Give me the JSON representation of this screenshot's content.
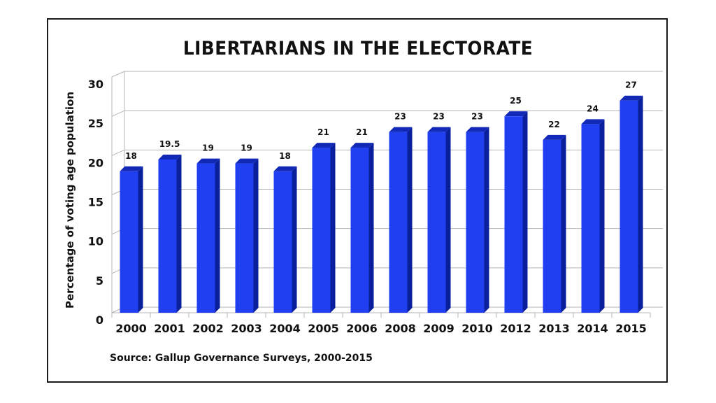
{
  "chart_data": {
    "type": "bar",
    "title": "LIBERTARIANS IN THE ELECTORATE",
    "ylabel": "Percentage of voting age population",
    "xlabel": "",
    "source": "Source: Gallup Governance Surveys, 2000-2015",
    "categories": [
      "2000",
      "2001",
      "2002",
      "2003",
      "2004",
      "2005",
      "2006",
      "2008",
      "2009",
      "2010",
      "2012",
      "2013",
      "2014",
      "2015"
    ],
    "values": [
      18,
      19.5,
      19,
      19,
      18,
      21,
      21,
      23,
      23,
      23,
      25,
      22,
      24,
      27
    ],
    "data_labels": [
      "18",
      "19.5",
      "19",
      "19",
      "18",
      "21",
      "21",
      "23",
      "23",
      "23",
      "25",
      "22",
      "24",
      "27"
    ],
    "ylim": [
      0,
      30
    ],
    "yticks": [
      "0",
      "5",
      "10",
      "15",
      "20",
      "25",
      "30"
    ],
    "grid": true,
    "colors": {
      "bar_front": "#1f3ff0",
      "bar_side": "#0a1f9c",
      "bar_top": "#1229b8",
      "grid": "#b5b5b5"
    }
  }
}
